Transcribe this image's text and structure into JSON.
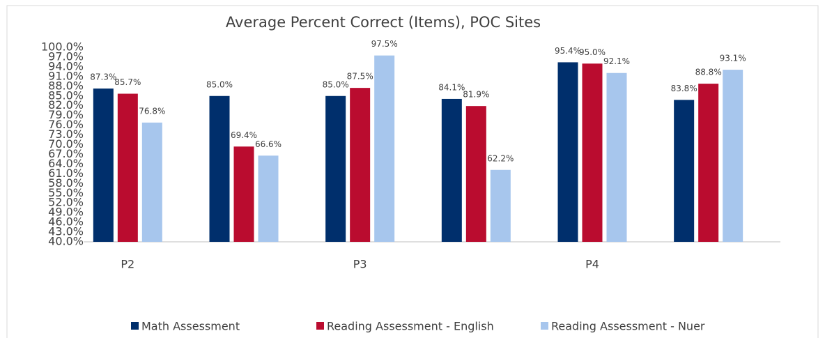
{
  "chart_data": {
    "type": "bar",
    "title": "Average Percent Correct (Items), POC Sites",
    "categories": [
      "P2",
      null,
      "P3",
      null,
      "P4",
      null
    ],
    "series": [
      {
        "name": "Math Assessment",
        "color": "#002f6c",
        "values": [
          87.3,
          85.0,
          85.0,
          84.1,
          95.4,
          83.8
        ],
        "value_labels": [
          "87.3%",
          "85.0%",
          "85.0%",
          "84.1%",
          "95.4%",
          "83.8%"
        ]
      },
      {
        "name": "Reading Assessment - English",
        "color": "#ba0c2f",
        "values": [
          85.7,
          69.4,
          87.5,
          81.9,
          95.0,
          88.8
        ],
        "value_labels": [
          "85.7%",
          "69.4%",
          "87.5%",
          "81.9%",
          "95.0%",
          "88.8%"
        ]
      },
      {
        "name": "Reading Assessment - Nuer",
        "color": "#a7c6ed",
        "values": [
          76.8,
          66.6,
          97.5,
          62.2,
          92.1,
          93.1
        ],
        "value_labels": [
          "76.8%",
          "66.6%",
          "97.5%",
          "62.2%",
          "92.1%",
          "93.1%"
        ]
      }
    ],
    "ylim": [
      40,
      100
    ],
    "yticks": [
      {
        "value": 40,
        "label": "40.0%"
      },
      {
        "value": 43,
        "label": "43.0%"
      },
      {
        "value": 46,
        "label": "46.0%"
      },
      {
        "value": 49,
        "label": "49.0%"
      },
      {
        "value": 52,
        "label": "52.0%"
      },
      {
        "value": 55,
        "label": "55.0%"
      },
      {
        "value": 58,
        "label": "58.0%"
      },
      {
        "value": 61,
        "label": "61.0%"
      },
      {
        "value": 64,
        "label": "64.0%"
      },
      {
        "value": 67,
        "label": "67.0%"
      },
      {
        "value": 70,
        "label": "70.0%"
      },
      {
        "value": 73,
        "label": "73.0%"
      },
      {
        "value": 76,
        "label": "76.0%"
      },
      {
        "value": 79,
        "label": "79.0%"
      },
      {
        "value": 82,
        "label": "82.0%"
      },
      {
        "value": 85,
        "label": "85.0%"
      },
      {
        "value": 88,
        "label": "88.0%"
      },
      {
        "value": 91,
        "label": "91.0%"
      },
      {
        "value": 94,
        "label": "94.0%"
      },
      {
        "value": 97,
        "label": "97.0%"
      },
      {
        "value": 100,
        "label": "100.0%"
      }
    ],
    "grid": false,
    "legend": "bottom"
  }
}
